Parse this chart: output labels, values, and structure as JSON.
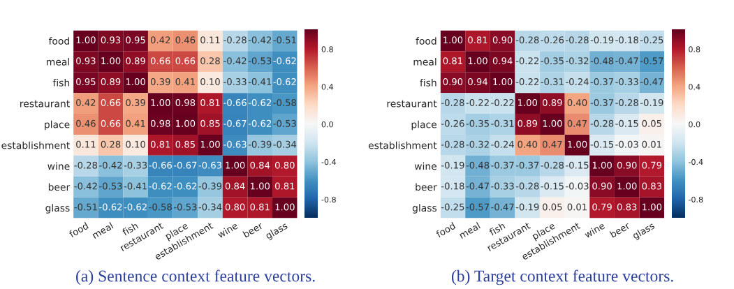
{
  "chart_data": [
    {
      "type": "heatmap",
      "categories": [
        "food",
        "meal",
        "fish",
        "restaurant",
        "place",
        "establishment",
        "wine",
        "beer",
        "glass"
      ],
      "y_categories": [
        "food",
        "meal",
        "fish",
        "restaurant",
        "place",
        "establishment",
        "wine",
        "beer",
        "glass"
      ],
      "cells": [
        [
          1.0,
          0.93,
          0.95,
          0.42,
          0.46,
          0.11,
          -0.28,
          -0.42,
          -0.51
        ],
        [
          0.93,
          1.0,
          0.89,
          0.66,
          0.66,
          0.28,
          -0.42,
          -0.53,
          -0.62
        ],
        [
          0.95,
          0.89,
          1.0,
          0.39,
          0.41,
          0.1,
          -0.33,
          -0.41,
          -0.62
        ],
        [
          0.42,
          0.66,
          0.39,
          1.0,
          0.98,
          0.81,
          -0.66,
          -0.62,
          -0.58
        ],
        [
          0.46,
          0.66,
          0.41,
          0.98,
          1.0,
          0.85,
          -0.67,
          -0.62,
          -0.53
        ],
        [
          0.11,
          0.28,
          0.1,
          0.81,
          0.85,
          1.0,
          -0.63,
          -0.39,
          -0.34
        ],
        [
          -0.28,
          -0.42,
          -0.33,
          -0.66,
          -0.67,
          -0.63,
          1.0,
          0.84,
          0.8
        ],
        [
          -0.42,
          -0.53,
          -0.41,
          -0.62,
          -0.62,
          -0.39,
          0.84,
          1.0,
          0.81
        ],
        [
          -0.51,
          -0.62,
          -0.62,
          -0.58,
          -0.53,
          -0.34,
          0.8,
          0.81,
          1.0
        ]
      ],
      "cell_labels": [
        [
          "1.00",
          "0.93",
          "0.95",
          "0.42",
          "0.46",
          "0.11",
          "-0.28",
          "-0.42",
          "-0.51"
        ],
        [
          "0.93",
          "1.00",
          "0.89",
          "0.66",
          "0.66",
          "0.28",
          "-0.42",
          "-0.53",
          "-0.62"
        ],
        [
          "0.95",
          "0.89",
          "1.00",
          "0.39",
          "0.41",
          "0.10",
          "-0.33",
          "-0.41",
          "-0.62"
        ],
        [
          "0.42",
          "0.66",
          "0.39",
          "1.00",
          "0.98",
          "0.81",
          "-0.66",
          "-0.62",
          "-0.58"
        ],
        [
          "0.46",
          "0.66",
          "0.41",
          "0.98",
          "1.00",
          "0.85",
          "-0.67",
          "-0.62",
          "-0.53"
        ],
        [
          "0.11",
          "0.28",
          "0.10",
          "0.81",
          "0.85",
          "1.00",
          "-0.63",
          "-0.39",
          "-0.34"
        ],
        [
          "-0.28",
          "-0.42",
          "-0.33",
          "-0.66",
          "-0.67",
          "-0.63",
          "1.00",
          "0.84",
          "0.80"
        ],
        [
          "-0.42",
          "-0.53",
          "-0.41",
          "-0.62",
          "-0.62",
          "-0.39",
          "0.84",
          "1.00",
          "0.81"
        ],
        [
          "-0.51",
          "-0.62",
          "-0.62",
          "-0.58",
          "-0.53",
          "-0.34",
          "0.80",
          "0.81",
          "1.00"
        ]
      ],
      "clim": [
        -1,
        1
      ],
      "cticks": [
        {
          "value": 0.8,
          "label": "0.8"
        },
        {
          "value": 0.4,
          "label": "0.4"
        },
        {
          "value": 0.0,
          "label": "0.0"
        },
        {
          "value": -0.4,
          "label": "-0.4"
        },
        {
          "value": -0.8,
          "label": "-0.8"
        }
      ],
      "annotations": [
        "(a) Sentence context feature vectors."
      ]
    },
    {
      "type": "heatmap",
      "categories": [
        "food",
        "meal",
        "fish",
        "restaurant",
        "place",
        "establishment",
        "wine",
        "beer",
        "glass"
      ],
      "y_categories": [
        "food",
        "meal",
        "fish",
        "restaurant",
        "place",
        "establishment",
        "wine",
        "beer",
        "glass"
      ],
      "cells": [
        [
          1.0,
          0.81,
          0.9,
          -0.28,
          -0.26,
          -0.28,
          -0.19,
          -0.18,
          -0.25
        ],
        [
          0.81,
          1.0,
          0.94,
          -0.22,
          -0.35,
          -0.32,
          -0.48,
          -0.47,
          -0.57
        ],
        [
          0.9,
          0.94,
          1.0,
          -0.22,
          -0.31,
          -0.24,
          -0.37,
          -0.33,
          -0.47
        ],
        [
          -0.28,
          -0.22,
          -0.22,
          1.0,
          0.89,
          0.4,
          -0.37,
          -0.28,
          -0.19
        ],
        [
          -0.26,
          -0.35,
          -0.31,
          0.89,
          1.0,
          0.47,
          -0.28,
          -0.15,
          0.05
        ],
        [
          -0.28,
          -0.32,
          -0.24,
          0.4,
          0.47,
          1.0,
          -0.15,
          -0.03,
          0.01
        ],
        [
          -0.19,
          -0.48,
          -0.37,
          -0.37,
          -0.28,
          -0.15,
          1.0,
          0.9,
          0.79
        ],
        [
          -0.18,
          -0.47,
          -0.33,
          -0.28,
          -0.15,
          -0.03,
          0.9,
          1.0,
          0.83
        ],
        [
          -0.25,
          -0.57,
          -0.47,
          -0.19,
          0.05,
          0.01,
          0.79,
          0.83,
          1.0
        ]
      ],
      "cell_labels": [
        [
          "1.00",
          "0.81",
          "0.90",
          "-0.28",
          "-0.26",
          "-0.28",
          "-0.19",
          "-0.18",
          "-0.25"
        ],
        [
          "0.81",
          "1.00",
          "0.94",
          "-0.22",
          "-0.35",
          "-0.32",
          "-0.48",
          "-0.47",
          "-0.57"
        ],
        [
          "0.90",
          "0.94",
          "1.00",
          "-0.22",
          "-0.31",
          "-0.24",
          "-0.37",
          "-0.33",
          "-0.47"
        ],
        [
          "-0.28",
          "-0.22",
          "-0.22",
          "1.00",
          "0.89",
          "0.40",
          "-0.37",
          "-0.28",
          "-0.19"
        ],
        [
          "-0.26",
          "-0.35",
          "-0.31",
          "0.89",
          "1.00",
          "0.47",
          "-0.28",
          "-0.15",
          "0.05"
        ],
        [
          "-0.28",
          "-0.32",
          "-0.24",
          "0.40",
          "0.47",
          "1.00",
          "-0.15",
          "-0.03",
          "0.01"
        ],
        [
          "-0.19",
          "-0.48",
          "-0.37",
          "-0.37",
          "-0.28",
          "-0.15",
          "1.00",
          "0.90",
          "0.79"
        ],
        [
          "-0.18",
          "-0.47",
          "-0.33",
          "-0.28",
          "-0.15",
          "-0.03",
          "0.90",
          "1.00",
          "0.83"
        ],
        [
          "-0.25",
          "-0.57",
          "-0.47",
          "-0.19",
          "0.05",
          "0.01",
          "0.79",
          "0.83",
          "1.00"
        ]
      ],
      "clim": [
        -1,
        1
      ],
      "cticks": [
        {
          "value": 0.8,
          "label": "0.8"
        },
        {
          "value": 0.4,
          "label": "0.4"
        },
        {
          "value": 0.0,
          "label": "0.0"
        },
        {
          "value": -0.4,
          "label": "-0.4"
        },
        {
          "value": -0.8,
          "label": "-0.8"
        }
      ],
      "annotations": [
        "(b) Target context feature vectors."
      ]
    }
  ]
}
